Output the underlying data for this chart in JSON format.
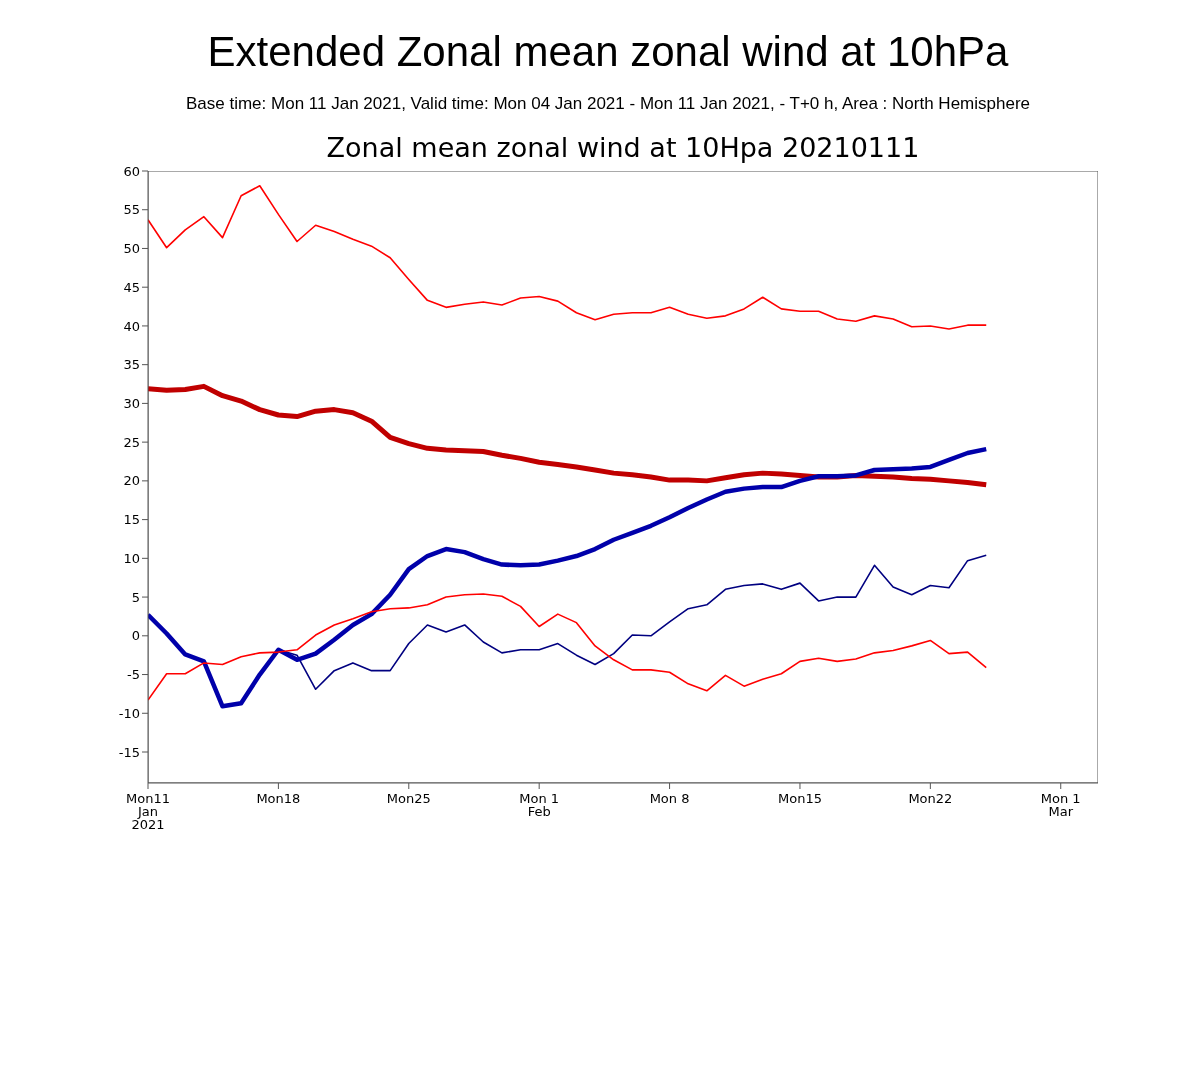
{
  "chart_data": {
    "type": "line",
    "title": "Extended Zonal mean zonal wind at 10hPa",
    "subtitle": "Base time: Mon 11 Jan 2021, Valid time: Mon 04 Jan 2021 - Mon 11 Jan 2021, - T+0 h, Area : North Hemisphere",
    "annotations": [
      "Zonal mean zonal wind at 10Hpa 20210111"
    ],
    "x": [
      "2021-01-11",
      "2021-01-12",
      "2021-01-13",
      "2021-01-14",
      "2021-01-15",
      "2021-01-16",
      "2021-01-17",
      "2021-01-18",
      "2021-01-19",
      "2021-01-20",
      "2021-01-21",
      "2021-01-22",
      "2021-01-23",
      "2021-01-24",
      "2021-01-25",
      "2021-01-26",
      "2021-01-27",
      "2021-01-28",
      "2021-01-29",
      "2021-01-30",
      "2021-01-31",
      "2021-02-01",
      "2021-02-02",
      "2021-02-03",
      "2021-02-04",
      "2021-02-05",
      "2021-02-06",
      "2021-02-07",
      "2021-02-08",
      "2021-02-09",
      "2021-02-10",
      "2021-02-11",
      "2021-02-12",
      "2021-02-13",
      "2021-02-14",
      "2021-02-15",
      "2021-02-16",
      "2021-02-17",
      "2021-02-18",
      "2021-02-19",
      "2021-02-20",
      "2021-02-21",
      "2021-02-22",
      "2021-02-23",
      "2021-02-24",
      "2021-02-25"
    ],
    "series": [
      {
        "color": "#ff0000",
        "values": [
          53.7,
          50.1,
          52.4,
          54.1,
          51.4,
          56.8,
          58.1,
          54.4,
          50.9,
          53.0,
          52.2,
          51.2,
          50.3,
          48.8,
          46.0,
          43.3,
          42.4,
          42.8,
          43.1,
          42.7,
          43.6,
          43.8,
          43.2,
          41.7,
          40.8,
          41.5,
          41.7,
          41.7,
          42.4,
          41.5,
          41.0,
          41.3,
          42.2,
          43.7,
          42.2,
          41.9,
          41.9,
          40.9,
          40.6,
          41.3,
          40.9,
          39.9,
          40.0,
          39.6,
          40.1,
          40.1
        ]
      },
      {
        "color": "#c00000",
        "values": [
          31.9,
          31.7,
          31.8,
          32.2,
          31.0,
          30.3,
          29.2,
          28.5,
          28.3,
          29.0,
          29.2,
          28.8,
          27.7,
          25.6,
          24.8,
          24.2,
          24.0,
          23.9,
          23.8,
          23.3,
          22.9,
          22.4,
          22.1,
          21.8,
          21.4,
          21.0,
          20.8,
          20.5,
          20.1,
          20.1,
          20.0,
          20.4,
          20.8,
          21.0,
          20.9,
          20.7,
          20.5,
          20.5,
          20.7,
          20.6,
          20.5,
          20.3,
          20.2,
          20.0,
          19.8,
          19.5
        ]
      },
      {
        "color": "#000080",
        "values": [
          2.7,
          0.3,
          -2.4,
          -3.3,
          -9.1,
          -8.7,
          -5.0,
          -1.8,
          -2.5,
          -6.9,
          -4.5,
          -3.5,
          -4.5,
          -4.5,
          -1.0,
          1.4,
          0.5,
          1.4,
          -0.8,
          -2.2,
          -1.8,
          -1.8,
          -1.0,
          -2.5,
          -3.7,
          -2.3,
          0.1,
          0.0,
          1.8,
          3.5,
          4.0,
          6.0,
          6.5,
          6.7,
          6.0,
          6.8,
          4.5,
          5.0,
          5.0,
          9.1,
          6.3,
          5.3,
          6.5,
          6.2,
          9.7,
          10.4
        ]
      },
      {
        "color": "#0000aa",
        "values": [
          2.7,
          0.3,
          -2.4,
          -3.3,
          -9.1,
          -8.7,
          -5.0,
          -1.8,
          -3.1,
          -2.3,
          -0.5,
          1.4,
          2.8,
          5.3,
          8.6,
          10.3,
          11.2,
          10.8,
          9.9,
          9.2,
          9.1,
          9.2,
          9.7,
          10.3,
          11.2,
          12.4,
          13.3,
          14.2,
          15.3,
          16.5,
          17.6,
          18.6,
          19.0,
          19.2,
          19.2,
          20.0,
          20.6,
          20.6,
          20.7,
          21.4,
          21.5,
          21.6,
          21.8,
          22.7,
          23.6,
          24.1
        ]
      },
      {
        "color": "#ff0000",
        "values": [
          -8.3,
          -4.9,
          -4.9,
          -3.5,
          -3.7,
          -2.7,
          -2.2,
          -2.1,
          -1.8,
          0.1,
          1.4,
          2.2,
          3.1,
          3.5,
          3.6,
          4.0,
          5.0,
          5.3,
          5.4,
          5.1,
          3.8,
          1.2,
          2.8,
          1.7,
          -1.3,
          -3.1,
          -4.4,
          -4.4,
          -4.7,
          -6.2,
          -7.1,
          -5.1,
          -6.5,
          -5.6,
          -4.9,
          -3.3,
          -2.9,
          -3.3,
          -3.0,
          -2.2,
          -1.9,
          -1.3,
          -0.6,
          -2.3,
          -2.1,
          -4.1
        ]
      }
    ],
    "xlim": [
      "2021-01-11",
      "2021-03-03"
    ],
    "xticks": [
      {
        "value": "2021-01-11",
        "label": "Mon11\nJan\n2021"
      },
      {
        "value": "2021-01-18",
        "label": "Mon18"
      },
      {
        "value": "2021-01-25",
        "label": "Mon25"
      },
      {
        "value": "2021-02-01",
        "label": "Mon 1\nFeb"
      },
      {
        "value": "2021-02-08",
        "label": "Mon 8"
      },
      {
        "value": "2021-02-15",
        "label": "Mon15"
      },
      {
        "value": "2021-02-22",
        "label": "Mon22"
      },
      {
        "value": "2021-03-01",
        "label": "Mon 1\nMar"
      }
    ],
    "ylim": [
      -19,
      60
    ],
    "yticks": [
      -15,
      -10,
      -5,
      0,
      5,
      10,
      15,
      20,
      25,
      30,
      35,
      40,
      45,
      50,
      55,
      60
    ]
  }
}
